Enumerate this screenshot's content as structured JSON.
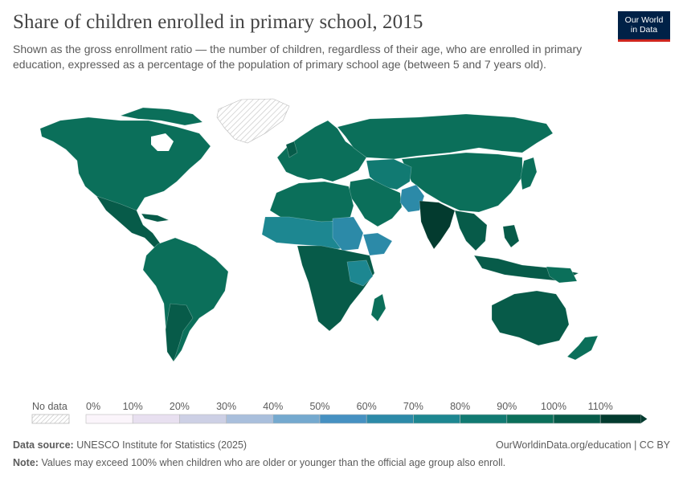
{
  "header": {
    "title": "Share of children enrolled in primary school, 2015",
    "subtitle": "Shown as the gross enrollment ratio — the number of children, regardless of their age, who are enrolled in primary education, expressed as a percentage of the population of primary school age (between 5 and 7 years old).",
    "logo_line1": "Our World",
    "logo_line2": "in Data"
  },
  "legend": {
    "no_data_label": "No data",
    "ticks": [
      "0%",
      "10%",
      "20%",
      "30%",
      "40%",
      "50%",
      "60%",
      "70%",
      "80%",
      "90%",
      "100%",
      "110%"
    ],
    "colors": [
      "#fbf5fb",
      "#e8e0f0",
      "#cdd0e5",
      "#a9bfdc",
      "#74a9cf",
      "#4691c2",
      "#2c8aa8",
      "#1d8791",
      "#117a72",
      "#0b6f5a",
      "#075b49",
      "#033b2f"
    ]
  },
  "footer": {
    "source_label": "Data source:",
    "source_value": "UNESCO Institute for Statistics (2025)",
    "url": "OurWorldinData.org/education | CC BY",
    "note_label": "Note:",
    "note_value": "Values may exceed 100% when children who are older or younger than the official age group also enroll."
  }
}
